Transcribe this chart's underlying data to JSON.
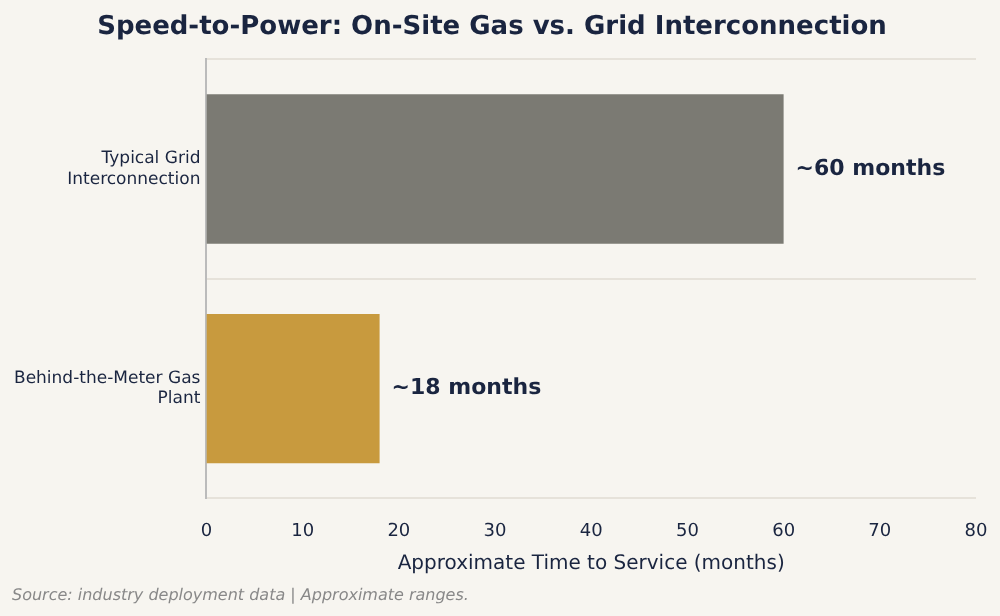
{
  "chart_data": {
    "type": "bar",
    "orientation": "horizontal",
    "title": "Speed-to-Power: On-Site Gas vs. Grid Interconnection",
    "categories": [
      "Typical Grid Interconnection",
      "Behind-the-Meter Gas Plant"
    ],
    "values": [
      60,
      18
    ],
    "colors": [
      "#7b7a73",
      "#c89a3e"
    ],
    "value_labels": [
      "~60 months",
      "~18 months"
    ],
    "xlabel": "Approximate Time to Service (months)",
    "xlim": [
      0,
      80
    ],
    "xticks": [
      0,
      10,
      20,
      30,
      40,
      50,
      60,
      70,
      80
    ],
    "grid": "y",
    "legend": false,
    "annotations": [
      "Source: industry deployment data | Approximate ranges."
    ]
  }
}
